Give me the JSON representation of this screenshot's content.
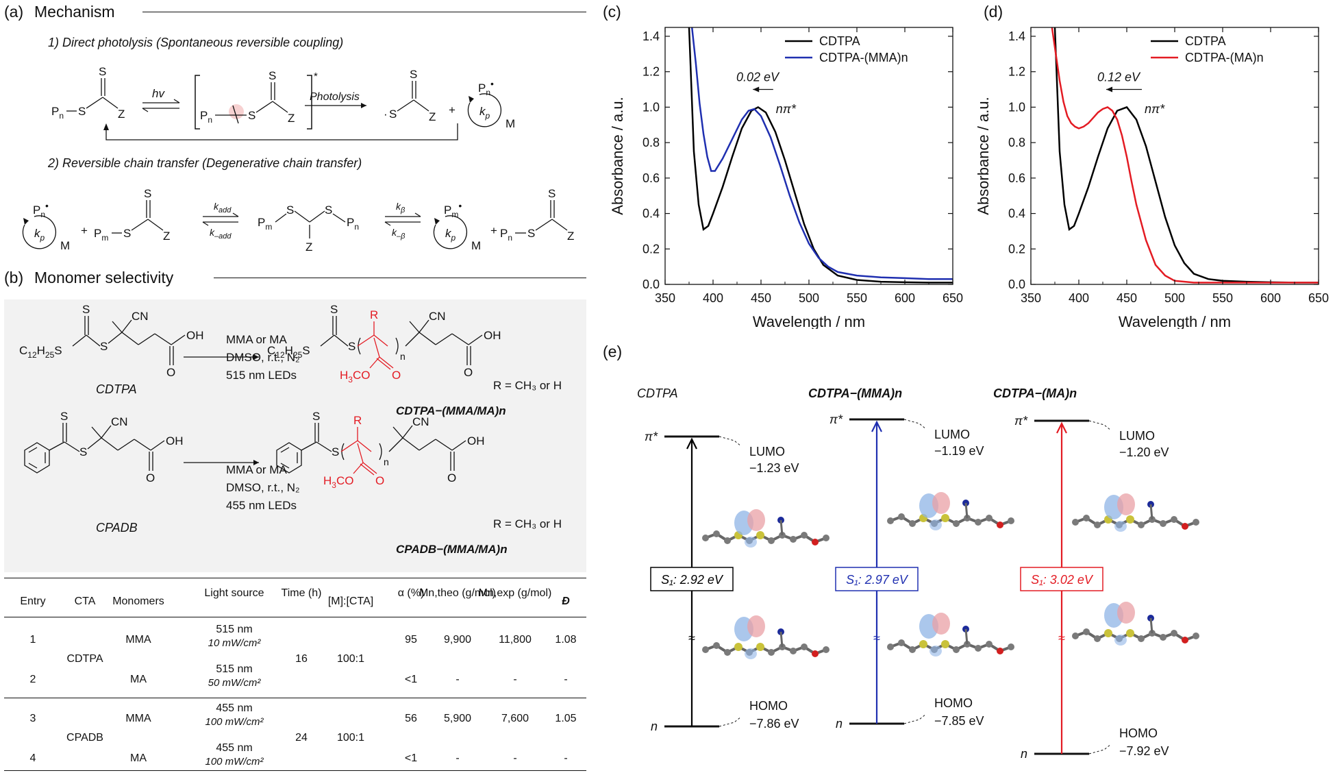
{
  "panel_a": {
    "label": "(a)",
    "title": "Mechanism",
    "step1": "1) Direct photolysis (Spontaneous reversible coupling)",
    "step2": "2) Reversible chain transfer (Degenerative chain transfer)",
    "hv": "hv",
    "photolysis": "Photolysis",
    "kadd": "k_add",
    "kminus_add": "k_–add",
    "kbeta": "k_β",
    "kminus_beta": "k_–β",
    "kp": "k_p",
    "M": "M"
  },
  "panel_b": {
    "label": "(b)",
    "title": "Monomer selectivity",
    "cdtpa_name": "CDTPA",
    "cpadb_name": "CPADB",
    "cond1": [
      "MMA or MA",
      "DMSO, r.t., N₂",
      "515 nm LEDs"
    ],
    "cond2": [
      "MMA or MA",
      "DMSO, r.t., N₂",
      "455 nm LEDs"
    ],
    "r_note": "R = CH₃ or H",
    "product1": "CDTPA−(MMA/MA)n",
    "product2": "CPADB−(MMA/MA)n",
    "table": {
      "headers": [
        "Entry",
        "CTA",
        "Monomers",
        "Light source",
        "Time (h)",
        "[M]:[CTA]",
        "α (%)",
        "Mn,theo (g/mol)",
        "Mn,exp (g/mol)",
        "Đ"
      ],
      "rows": [
        {
          "entry": "1",
          "cta": "CDTPA",
          "monomer": "MMA",
          "light": "515 nm",
          "power": "10 mW/cm²",
          "time": "16",
          "ratio": "100:1",
          "alpha": "95",
          "mtheo": "9,900",
          "mexp": "11,800",
          "d": "1.08"
        },
        {
          "entry": "2",
          "cta": "",
          "monomer": "MA",
          "light": "515 nm",
          "power": "50 mW/cm²",
          "time": "",
          "ratio": "",
          "alpha": "<1",
          "mtheo": "-",
          "mexp": "-",
          "d": "-"
        },
        {
          "entry": "3",
          "cta": "CPADB",
          "monomer": "MMA",
          "light": "455 nm",
          "power": "100 mW/cm²",
          "time": "24",
          "ratio": "100:1",
          "alpha": "56",
          "mtheo": "5,900",
          "mexp": "7,600",
          "d": "1.05"
        },
        {
          "entry": "4",
          "cta": "",
          "monomer": "MA",
          "light": "455 nm",
          "power": "100 mW/cm²",
          "time": "",
          "ratio": "",
          "alpha": "<1",
          "mtheo": "-",
          "mexp": "-",
          "d": "-"
        }
      ]
    }
  },
  "chart_data": [
    {
      "type": "line",
      "panel": "(c)",
      "xlabel": "Wavelength / nm",
      "ylabel": "Absorbance / a.u.",
      "xlim": [
        350,
        650
      ],
      "ylim": [
        0,
        1.45
      ],
      "xticks": [
        "350",
        "400",
        "450",
        "500",
        "550",
        "600",
        "650"
      ],
      "yticks": [
        "0.0",
        "0.2",
        "0.4",
        "0.6",
        "0.8",
        "1.0",
        "1.2",
        "1.4"
      ],
      "legend": "top-right",
      "annotation": "0.02 eV",
      "peak_label": "nπ*",
      "series": [
        {
          "name": "CDTPA",
          "color": "#000000",
          "x": [
            375,
            380,
            385,
            390,
            395,
            400,
            410,
            420,
            430,
            440,
            447,
            455,
            465,
            475,
            485,
            495,
            505,
            515,
            530,
            550,
            575,
            600,
            625,
            650
          ],
          "y": [
            1.45,
            0.75,
            0.45,
            0.31,
            0.33,
            0.4,
            0.55,
            0.72,
            0.88,
            0.98,
            1.0,
            0.97,
            0.86,
            0.7,
            0.52,
            0.34,
            0.2,
            0.11,
            0.05,
            0.025,
            0.015,
            0.012,
            0.01,
            0.01
          ]
        },
        {
          "name": "CDTPA-(MMA)n",
          "color": "#1f2fb0",
          "x": [
            378,
            382,
            386,
            390,
            394,
            398,
            402,
            410,
            420,
            430,
            437,
            443,
            450,
            460,
            470,
            480,
            490,
            500,
            510,
            520,
            530,
            550,
            575,
            600,
            625,
            650
          ],
          "y": [
            1.45,
            1.25,
            1.02,
            0.85,
            0.72,
            0.64,
            0.64,
            0.71,
            0.82,
            0.93,
            0.98,
            0.99,
            0.95,
            0.83,
            0.67,
            0.5,
            0.35,
            0.23,
            0.15,
            0.1,
            0.07,
            0.05,
            0.04,
            0.035,
            0.03,
            0.03
          ]
        }
      ]
    },
    {
      "type": "line",
      "panel": "(d)",
      "xlabel": "Wavelength / nm",
      "ylabel": "Absorbance / a.u.",
      "xlim": [
        350,
        650
      ],
      "ylim": [
        0,
        1.45
      ],
      "xticks": [
        "350",
        "400",
        "450",
        "500",
        "550",
        "600",
        "650"
      ],
      "yticks": [
        "0.0",
        "0.2",
        "0.4",
        "0.6",
        "0.8",
        "1.0",
        "1.2",
        "1.4"
      ],
      "legend": "top-right",
      "annotation": "0.12 eV",
      "peak_label": "nπ*",
      "series": [
        {
          "name": "CDTPA",
          "color": "#000000",
          "x": [
            375,
            380,
            385,
            390,
            395,
            400,
            410,
            420,
            430,
            440,
            450,
            460,
            470,
            480,
            490,
            500,
            510,
            520,
            535,
            550,
            575,
            600,
            625,
            650
          ],
          "y": [
            1.45,
            0.75,
            0.45,
            0.31,
            0.33,
            0.4,
            0.55,
            0.72,
            0.88,
            0.98,
            1.0,
            0.93,
            0.78,
            0.58,
            0.38,
            0.22,
            0.12,
            0.06,
            0.03,
            0.02,
            0.015,
            0.012,
            0.01,
            0.01
          ]
        },
        {
          "name": "CDTPA-(MA)n",
          "color": "#e31b23",
          "x": [
            372,
            376,
            380,
            384,
            388,
            392,
            396,
            400,
            405,
            410,
            415,
            420,
            425,
            430,
            435,
            440,
            445,
            450,
            455,
            460,
            470,
            480,
            490,
            500,
            520,
            550,
            600,
            650
          ],
          "y": [
            1.45,
            1.3,
            1.15,
            1.03,
            0.95,
            0.91,
            0.89,
            0.88,
            0.89,
            0.91,
            0.94,
            0.97,
            0.99,
            1.0,
            0.98,
            0.93,
            0.84,
            0.72,
            0.58,
            0.45,
            0.25,
            0.11,
            0.05,
            0.02,
            0.01,
            0.01,
            0.01,
            0.01
          ]
        }
      ]
    }
  ],
  "panel_e": {
    "label": "(e)",
    "cols": [
      {
        "title": "CDTPA",
        "color": "#000000",
        "lumo": "LUMO",
        "lumo_e": "−1.23 eV",
        "homo": "HOMO",
        "homo_e": "−7.86 eV",
        "s1": "S₁: 2.92 eV"
      },
      {
        "title": "CDTPA−(MMA)n",
        "color": "#1f2fb0",
        "lumo": "LUMO",
        "lumo_e": "−1.19 eV",
        "homo": "HOMO",
        "homo_e": "−7.85 eV",
        "s1": "S₁: 2.97 eV"
      },
      {
        "title": "CDTPA−(MA)n",
        "color": "#e31b23",
        "lumo": "LUMO",
        "lumo_e": "−1.20 eV",
        "homo": "HOMO",
        "homo_e": "−7.92 eV",
        "s1": "S₁: 3.02 eV"
      }
    ],
    "pi_star": "π*",
    "n": "n",
    "break_mark": "≈"
  }
}
